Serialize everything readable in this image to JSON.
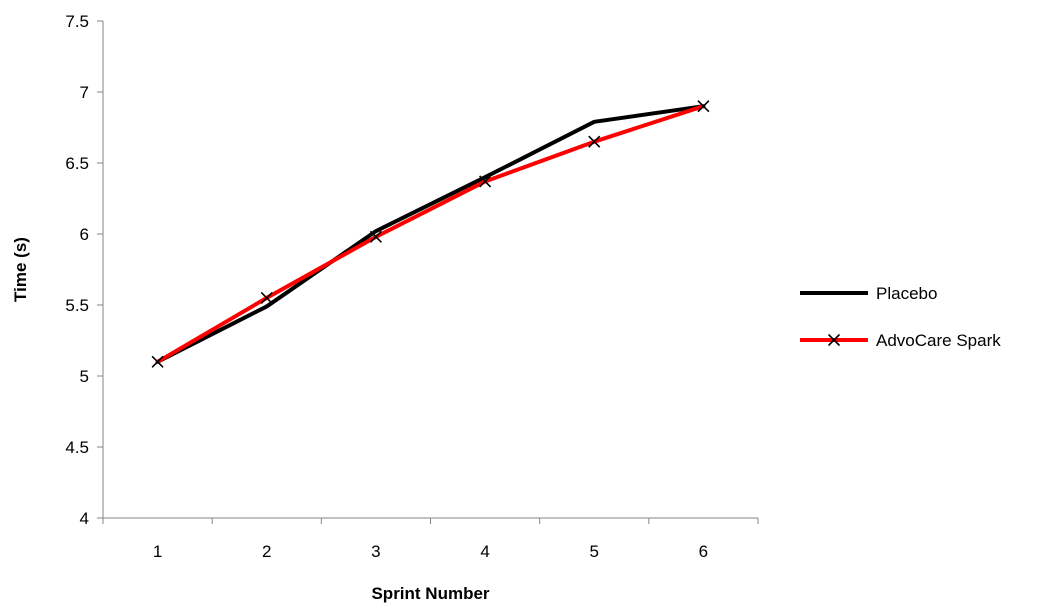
{
  "chart_data": {
    "type": "line",
    "title": "",
    "xlabel": "Sprint Number",
    "ylabel": "Time (s)",
    "categories": [
      "1",
      "2",
      "3",
      "4",
      "5",
      "6"
    ],
    "ylim": [
      4,
      7.5
    ],
    "yticks": [
      "4",
      "4.5",
      "5",
      "5.5",
      "6",
      "6.5",
      "7",
      "7.5"
    ],
    "grid": false,
    "legend_position": "right",
    "series": [
      {
        "name": "Placebo",
        "values": [
          5.1,
          5.49,
          6.02,
          6.4,
          6.79,
          6.9
        ],
        "color": "#000000",
        "marker": "none"
      },
      {
        "name": "AdvoCare Spark",
        "values": [
          5.1,
          5.55,
          5.98,
          6.37,
          6.65,
          6.9
        ],
        "color": "#ff0000",
        "marker": "x"
      }
    ]
  }
}
